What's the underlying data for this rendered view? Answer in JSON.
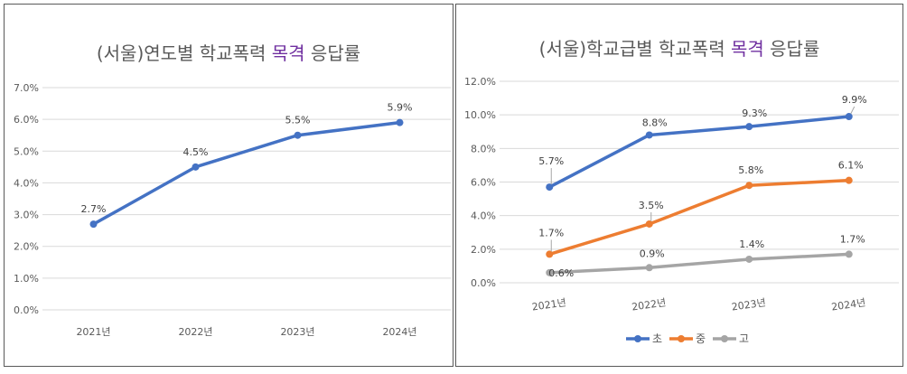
{
  "chart_data": [
    {
      "type": "line",
      "title": {
        "prefix": "(서울)연도별 학교폭력 ",
        "highlight": "목격",
        "suffix": " 응답률"
      },
      "categories": [
        "2021년",
        "2022년",
        "2023년",
        "2024년"
      ],
      "series": [
        {
          "name": "응답률",
          "values": [
            2.7,
            4.5,
            5.5,
            5.9
          ],
          "labels": [
            "2.7%",
            "4.5%",
            "5.5%",
            "5.9%"
          ],
          "color": "#4472c4"
        }
      ],
      "y_ticks": [
        "0.0%",
        "1.0%",
        "2.0%",
        "3.0%",
        "4.0%",
        "5.0%",
        "6.0%",
        "7.0%"
      ],
      "ylim": [
        0,
        7
      ],
      "grid": true,
      "legend": "none"
    },
    {
      "type": "line",
      "title": {
        "prefix": "(서울)학교급별 학교폭력 ",
        "highlight": "목격",
        "suffix": " 응답률"
      },
      "categories": [
        "2021년",
        "2022년",
        "2023년",
        "2024년"
      ],
      "series": [
        {
          "name": "초",
          "values": [
            5.7,
            8.8,
            9.3,
            9.9
          ],
          "labels": [
            "5.7%",
            "8.8%",
            "9.3%",
            "9.9%"
          ],
          "color": "#4472c4"
        },
        {
          "name": "중",
          "values": [
            1.7,
            3.5,
            5.8,
            6.1
          ],
          "labels": [
            "1.7%",
            "3.5%",
            "5.8%",
            "6.1%"
          ],
          "color": "#ed7d31"
        },
        {
          "name": "고",
          "values": [
            0.6,
            0.9,
            1.4,
            1.7
          ],
          "labels": [
            "0.6%",
            "0.9%",
            "1.4%",
            "1.7%"
          ],
          "color": "#a5a5a5"
        }
      ],
      "y_ticks": [
        "0.0%",
        "2.0%",
        "4.0%",
        "6.0%",
        "8.0%",
        "10.0%",
        "12.0%"
      ],
      "ylim": [
        0,
        12
      ],
      "grid": true,
      "legend": "bottom"
    }
  ]
}
